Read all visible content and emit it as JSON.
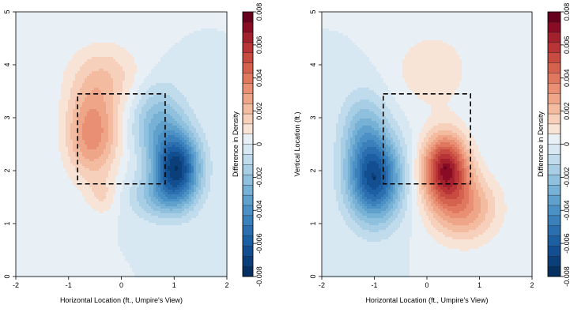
{
  "chart_data": [
    {
      "type": "heatmap",
      "subtype": "filled-contour",
      "xlabel": "Horizontal Location (ft., Umpire's View)",
      "ylabel": "",
      "xlim": [
        -2,
        2
      ],
      "ylim": [
        0,
        5
      ],
      "x_ticks": [
        "-2",
        "-1",
        "0",
        "1",
        "2"
      ],
      "y_ticks": [
        "0",
        "1",
        "2",
        "3",
        "4",
        "5"
      ],
      "colorbar_label": "Difference in Density",
      "colorbar_range": [
        -0.008,
        0.008
      ],
      "colorbar_ticks": [
        "-0.008",
        "-0.006",
        "-0.004",
        "-0.002",
        "0",
        "0.002",
        "0.004",
        "0.006",
        "0.008"
      ],
      "strike_zone": {
        "x": [
          -0.83,
          0.83
        ],
        "y": [
          1.75,
          3.45
        ]
      },
      "features": [
        {
          "sign": "positive",
          "center": [
            -0.55,
            2.7
          ],
          "peak": 0.0035,
          "spread": [
            0.35,
            0.6
          ]
        },
        {
          "sign": "positive",
          "center": [
            -0.3,
            3.8
          ],
          "peak": 0.0015,
          "spread": [
            0.5,
            0.45
          ]
        },
        {
          "sign": "positive",
          "center": [
            -0.35,
            1.5
          ],
          "peak": 0.001,
          "spread": [
            0.2,
            0.25
          ]
        },
        {
          "sign": "negative",
          "center": [
            1.05,
            2.05
          ],
          "peak": -0.0068,
          "spread": [
            0.3,
            0.45
          ]
        },
        {
          "sign": "negative",
          "center": [
            0.7,
            2.9
          ],
          "peak": -0.0025,
          "spread": [
            0.35,
            0.5
          ]
        },
        {
          "sign": "negative",
          "center": [
            0.7,
            1.5
          ],
          "peak": -0.0018,
          "spread": [
            0.4,
            0.3
          ]
        }
      ]
    },
    {
      "type": "heatmap",
      "subtype": "filled-contour",
      "xlabel": "Horizontal Location (ft., Umpire's View)",
      "ylabel": "Vertical Location (ft.)",
      "xlim": [
        -2,
        2
      ],
      "ylim": [
        0,
        5
      ],
      "x_ticks": [
        "-2",
        "-1",
        "0",
        "1",
        "2"
      ],
      "y_ticks": [
        "0",
        "1",
        "2",
        "3",
        "4",
        "5"
      ],
      "colorbar_label": "Difference in Density",
      "colorbar_range": [
        -0.008,
        0.008
      ],
      "colorbar_ticks": [
        "-0.008",
        "-0.006",
        "-0.004",
        "-0.002",
        "0",
        "0.002",
        "0.004",
        "0.006",
        "0.008"
      ],
      "strike_zone": {
        "x": [
          -0.83,
          0.83
        ],
        "y": [
          1.75,
          3.45
        ]
      },
      "features": [
        {
          "sign": "negative",
          "center": [
            -1.0,
            1.85
          ],
          "peak": -0.0065,
          "spread": [
            0.35,
            0.55
          ]
        },
        {
          "sign": "negative",
          "center": [
            -1.2,
            2.8
          ],
          "peak": -0.002,
          "spread": [
            0.3,
            0.5
          ]
        },
        {
          "sign": "positive",
          "center": [
            0.35,
            2.05
          ],
          "peak": 0.0065,
          "spread": [
            0.3,
            0.45
          ]
        },
        {
          "sign": "positive",
          "center": [
            0.7,
            1.3
          ],
          "peak": 0.003,
          "spread": [
            0.45,
            0.45
          ]
        },
        {
          "sign": "positive",
          "center": [
            0.1,
            3.9
          ],
          "peak": 0.0012,
          "spread": [
            0.5,
            0.5
          ]
        }
      ]
    }
  ]
}
